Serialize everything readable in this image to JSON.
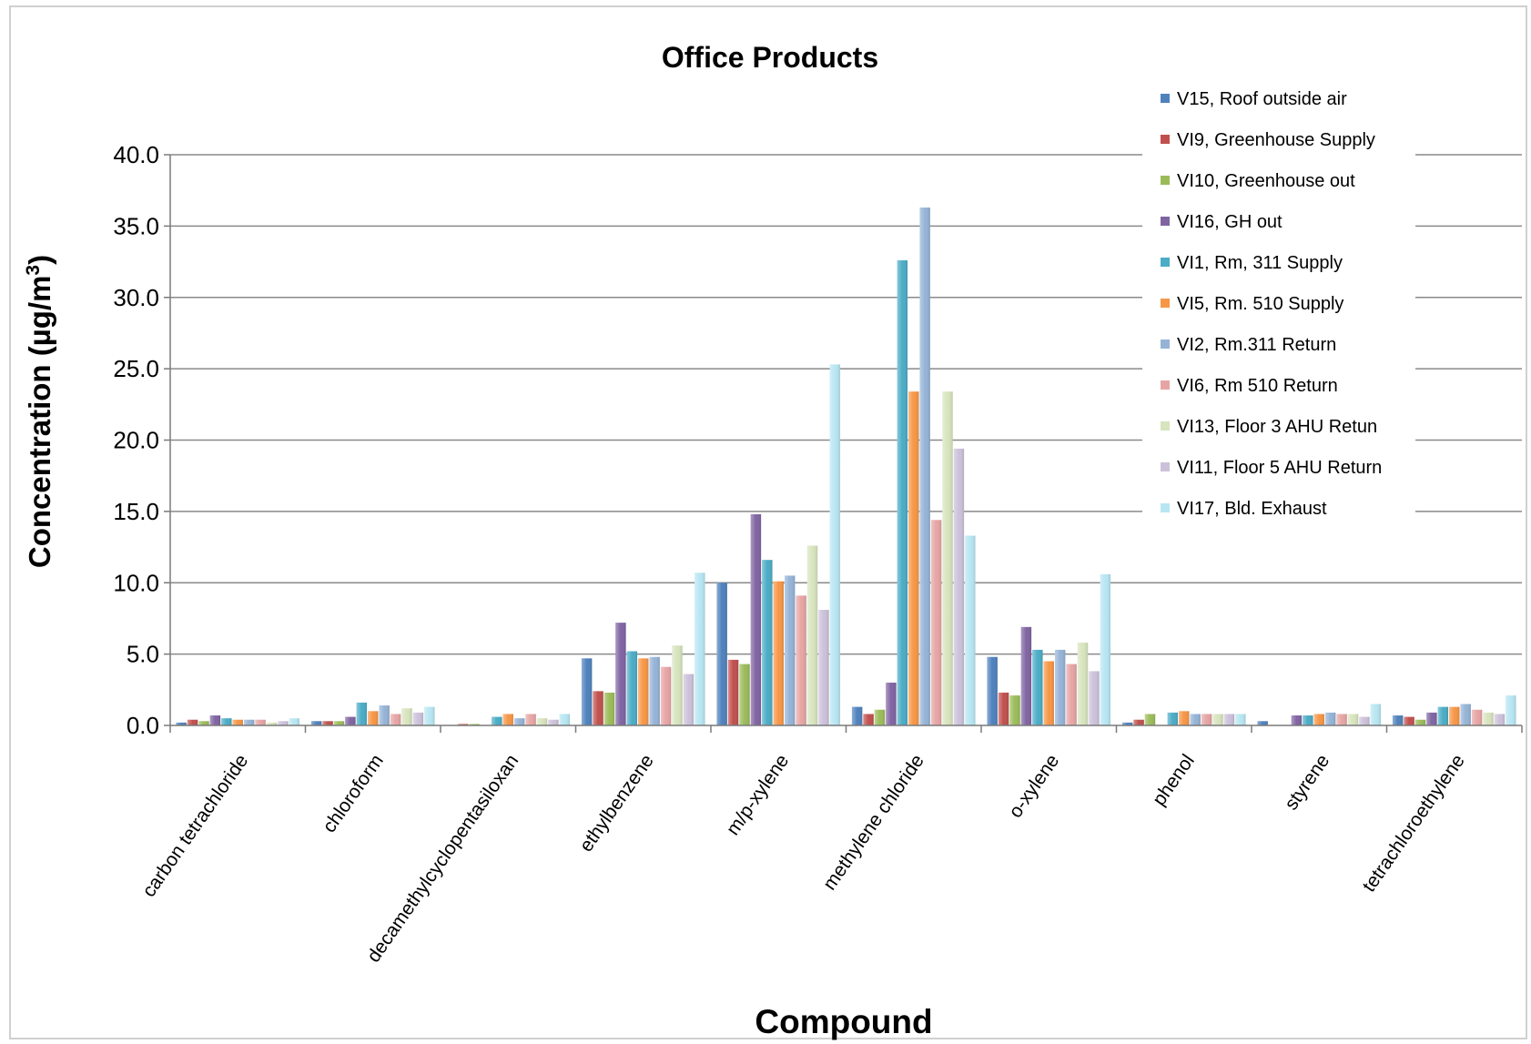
{
  "chart_data": {
    "type": "bar",
    "title": "Office Products",
    "xlabel": "Compound",
    "ylabel": "Concentration (µg/m³)",
    "ylabel_parts": {
      "main": "Concentration (µg/m",
      "sup": "3",
      "end": ")"
    },
    "ylim": [
      0,
      40
    ],
    "yticks": [
      "0.0",
      "5.0",
      "10.0",
      "15.0",
      "20.0",
      "25.0",
      "30.0",
      "35.0",
      "40.0"
    ],
    "grid": true,
    "legend_position": "top-right",
    "categories": [
      "carbon tetrachloride",
      "chloroform",
      "decamethylcyclopentasiloxan",
      "ethylbenzene",
      "m/p-xylene",
      "methylene chloride",
      "o-xylene",
      "phenol",
      "styrene",
      "tetrachloroethylene"
    ],
    "series": [
      {
        "name": "V15, Roof outside air",
        "color": "#4f81bd",
        "values": [
          0.2,
          0.3,
          0.0,
          4.7,
          10.0,
          1.3,
          4.8,
          0.2,
          0.3,
          0.7
        ]
      },
      {
        "name": "VI9, Greenhouse Supply",
        "color": "#c0504d",
        "values": [
          0.4,
          0.3,
          0.1,
          2.4,
          4.6,
          0.8,
          2.3,
          0.4,
          0.0,
          0.6
        ]
      },
      {
        "name": "VI10, Greenhouse out",
        "color": "#9bbb59",
        "values": [
          0.3,
          0.3,
          0.1,
          2.3,
          4.3,
          1.1,
          2.1,
          0.8,
          0.0,
          0.4
        ]
      },
      {
        "name": "VI16, GH out",
        "color": "#8064a2",
        "values": [
          0.7,
          0.6,
          0.0,
          7.2,
          14.8,
          3.0,
          6.9,
          0.0,
          0.7,
          0.9
        ]
      },
      {
        "name": "VI1, Rm, 311 Supply",
        "color": "#4bacc6",
        "values": [
          0.5,
          1.6,
          0.6,
          5.2,
          11.6,
          32.6,
          5.3,
          0.9,
          0.7,
          1.3
        ]
      },
      {
        "name": "VI5, Rm. 510 Supply",
        "color": "#f79646",
        "values": [
          0.4,
          1.0,
          0.8,
          4.7,
          10.1,
          23.4,
          4.5,
          1.0,
          0.8,
          1.3
        ]
      },
      {
        "name": "VI2, Rm.311 Return",
        "color": "#95b3d7",
        "values": [
          0.4,
          1.4,
          0.5,
          4.8,
          10.5,
          36.3,
          5.3,
          0.8,
          0.9,
          1.5
        ]
      },
      {
        "name": "VI6, Rm 510 Return",
        "color": "#e6a5a4",
        "values": [
          0.4,
          0.8,
          0.8,
          4.1,
          9.1,
          14.4,
          4.3,
          0.8,
          0.8,
          1.1
        ]
      },
      {
        "name": "VI13, Floor 3 AHU Retun",
        "color": "#d7e4bd",
        "values": [
          0.2,
          1.2,
          0.5,
          5.6,
          12.6,
          23.4,
          5.8,
          0.8,
          0.8,
          0.9
        ]
      },
      {
        "name": "VI11, Floor 5 AHU Return",
        "color": "#ccc1da",
        "values": [
          0.3,
          0.9,
          0.4,
          3.6,
          8.1,
          19.4,
          3.8,
          0.8,
          0.6,
          0.8
        ]
      },
      {
        "name": "VI17, Bld. Exhaust",
        "color": "#b7e6f2",
        "values": [
          0.5,
          1.3,
          0.8,
          10.7,
          25.3,
          13.3,
          10.6,
          0.8,
          1.5,
          2.1
        ]
      }
    ]
  }
}
